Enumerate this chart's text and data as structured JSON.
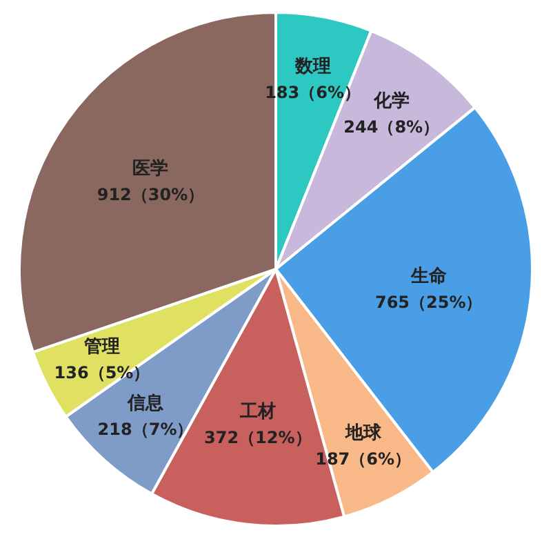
{
  "chart_data": {
    "type": "pie",
    "categories": [
      "数理",
      "化学",
      "生命",
      "地球",
      "工材",
      "信息",
      "管理",
      "医学"
    ],
    "values": [
      183,
      244,
      765,
      187,
      372,
      218,
      136,
      912
    ],
    "value_labels": [
      "183（6%）",
      "244（8%）",
      "765（25%）",
      "187（6%）",
      "372（12%）",
      "218（7%）",
      "136（5%）",
      "912（30%）"
    ],
    "colors": [
      "#2ec8c2",
      "#c8b8dc",
      "#4a9ee6",
      "#f8b888",
      "#c8605e",
      "#7f9cc8",
      "#e0e062",
      "#8a6860"
    ]
  }
}
